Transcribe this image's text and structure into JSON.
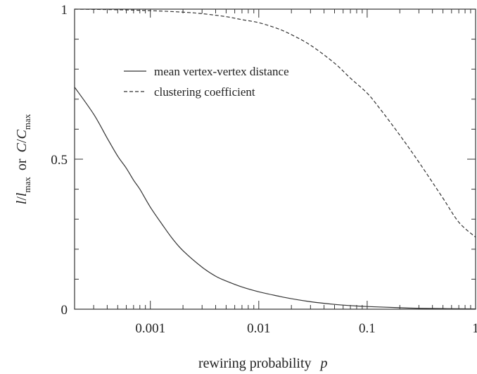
{
  "chart_data": {
    "type": "line",
    "title": "",
    "xlabel": "rewiring probability",
    "xlabel_var": "p",
    "ylabel": {
      "l": "l",
      "lmax_base": "l",
      "lmax_sub": "max",
      "or": "or",
      "c": "C",
      "cmax_base": "C",
      "cmax_sub": "max"
    },
    "x_scale": "log",
    "xlim": [
      0.0002,
      1
    ],
    "ylim": [
      0,
      1
    ],
    "x_ticks": [
      {
        "value": 0.001,
        "label": "0.001"
      },
      {
        "value": 0.01,
        "label": "0.01"
      },
      {
        "value": 0.1,
        "label": "0.1"
      },
      {
        "value": 1,
        "label": "1"
      }
    ],
    "y_ticks": [
      {
        "value": 0,
        "label": "0"
      },
      {
        "value": 0.5,
        "label": "0.5"
      },
      {
        "value": 1,
        "label": "1"
      }
    ],
    "legend_position": "upper-middle",
    "series": [
      {
        "name": "mean vertex-vertex distance",
        "style": "solid",
        "x": [
          0.0002,
          0.0003,
          0.0004,
          0.0005,
          0.0006,
          0.0007,
          0.0008,
          0.001,
          0.0013,
          0.0016,
          0.002,
          0.003,
          0.004,
          0.005,
          0.007,
          0.01,
          0.015,
          0.02,
          0.03,
          0.05,
          0.07,
          0.1,
          0.2,
          0.3,
          0.5,
          1
        ],
        "y": [
          0.74,
          0.65,
          0.57,
          0.51,
          0.47,
          0.43,
          0.4,
          0.34,
          0.28,
          0.235,
          0.195,
          0.14,
          0.11,
          0.094,
          0.074,
          0.058,
          0.044,
          0.035,
          0.025,
          0.016,
          0.012,
          0.009,
          0.005,
          0.003,
          0.002,
          0.001
        ]
      },
      {
        "name": "clustering coefficient",
        "style": "dashed",
        "x": [
          0.0002,
          0.0005,
          0.001,
          0.002,
          0.003,
          0.005,
          0.007,
          0.01,
          0.015,
          0.02,
          0.03,
          0.05,
          0.07,
          0.1,
          0.13,
          0.2,
          0.3,
          0.5,
          0.7,
          1
        ],
        "y": [
          1.0,
          0.998,
          0.995,
          0.99,
          0.985,
          0.975,
          0.965,
          0.955,
          0.935,
          0.915,
          0.88,
          0.82,
          0.77,
          0.72,
          0.67,
          0.58,
          0.49,
          0.37,
          0.29,
          0.24
        ]
      }
    ]
  }
}
